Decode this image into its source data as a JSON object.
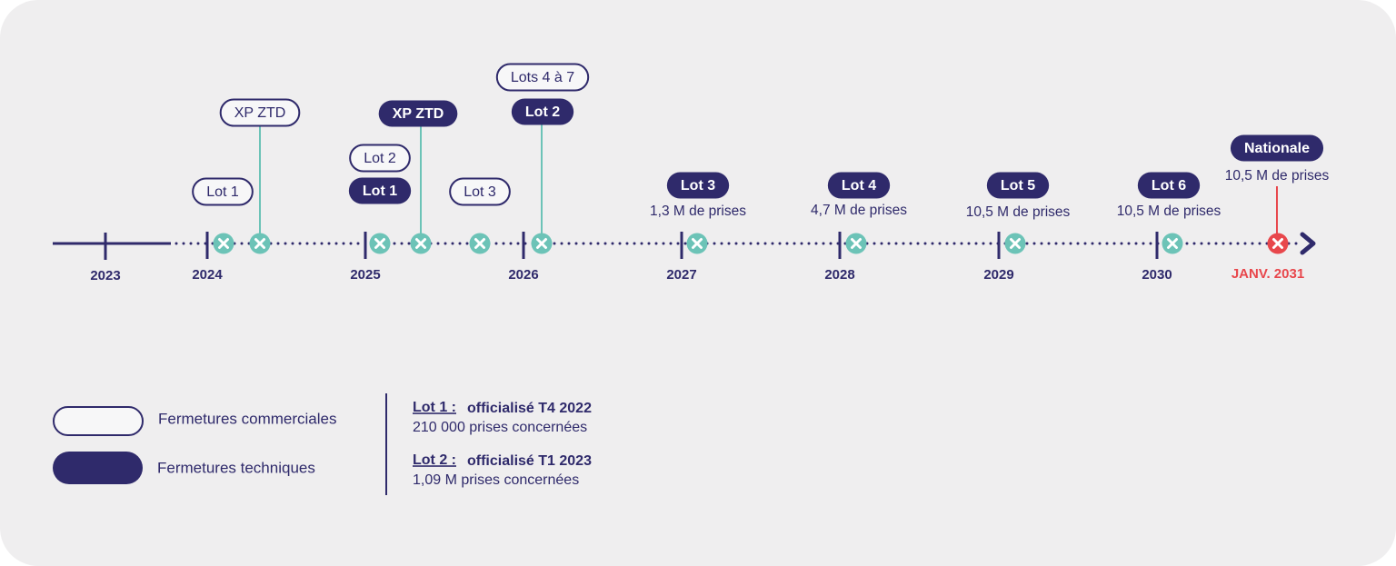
{
  "timeline": {
    "years": [
      "2023",
      "2024",
      "2025",
      "2026",
      "2027",
      "2028",
      "2029",
      "2030"
    ],
    "end": "JANV. 2031"
  },
  "commercial": [
    "Lot 1",
    "XP ZTD",
    "Lot 2",
    "Lot 3",
    "Lots 4 à 7"
  ],
  "technical": [
    {
      "label": "Lot 1"
    },
    {
      "label": "XP ZTD"
    },
    {
      "label": "Lot 2"
    },
    {
      "label": "Lot 3",
      "note": "1,3 M de prises"
    },
    {
      "label": "Lot 4",
      "note": "4,7 M de prises"
    },
    {
      "label": "Lot 5",
      "note": "10,5 M de prises"
    },
    {
      "label": "Lot 6",
      "note": "10,5 M de prises"
    },
    {
      "label": "Nationale",
      "note": "10,5 M de prises"
    }
  ],
  "legend": [
    "Fermetures commerciales",
    "Fermetures techniques"
  ],
  "notes": [
    {
      "lot": "Lot 1 :",
      "status": "officialisé T4 2022",
      "detail": "210 000 prises concernées"
    },
    {
      "lot": "Lot 2 :",
      "status": "officialisé T1 2023",
      "detail": "1,09 M prises concernées"
    }
  ]
}
